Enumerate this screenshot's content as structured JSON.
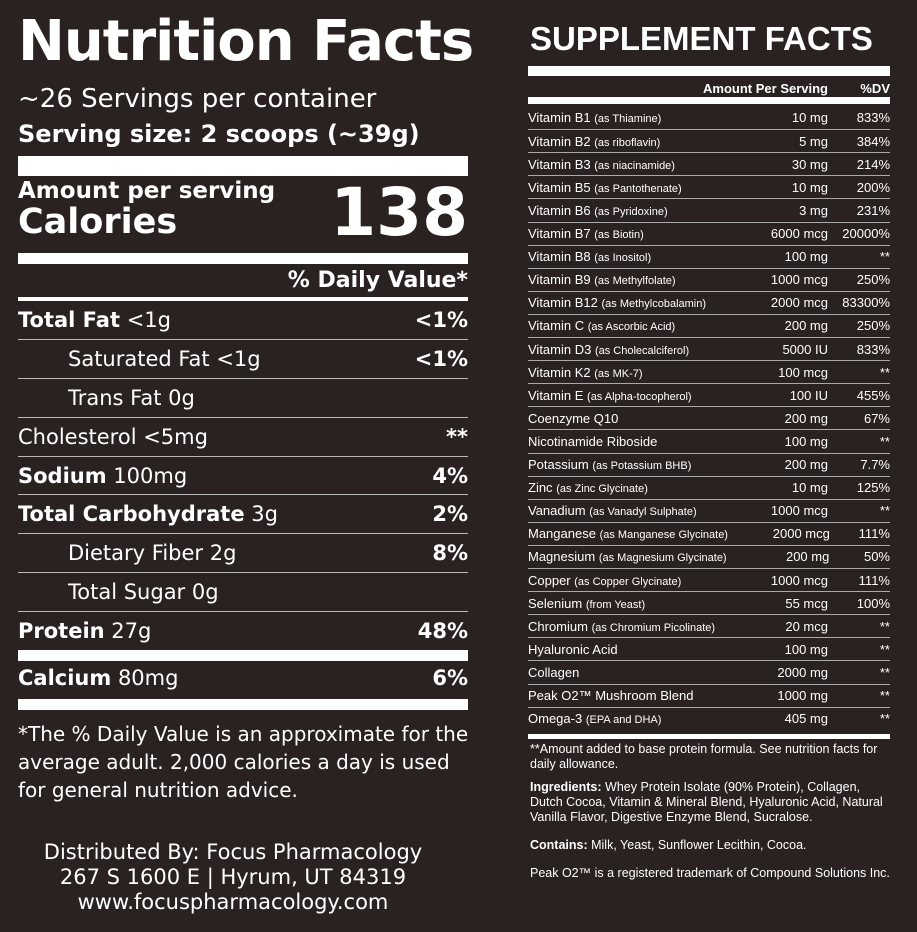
{
  "nutrition": {
    "title": "Nutrition Facts",
    "servings": "~26 Servings per container",
    "serving_size": "Serving size: 2 scoops (~39g)",
    "amount_per_serving": "Amount per serving",
    "calories_label": "Calories",
    "calories_value": "138",
    "dv_header": "% Daily Value*",
    "rows": [
      {
        "label": "Total Fat",
        "amount": " <1g",
        "dv": "<1%",
        "bold": true,
        "indent": false
      },
      {
        "label": "Saturated Fat <1g",
        "amount": "",
        "dv": "<1%",
        "bold": false,
        "indent": true
      },
      {
        "label": "Trans Fat 0g",
        "amount": "",
        "dv": "",
        "bold": false,
        "indent": true
      },
      {
        "label": "Cholesterol <5mg",
        "amount": "",
        "dv": "**",
        "bold": false,
        "indent": false
      },
      {
        "label": "Sodium",
        "amount": " 100mg",
        "dv": "4%",
        "bold": true,
        "indent": false
      },
      {
        "label": "Total Carbohydrate",
        "amount": " 3g",
        "dv": "2%",
        "bold": true,
        "indent": false
      },
      {
        "label": "Dietary Fiber 2g",
        "amount": "",
        "dv": "8%",
        "bold": false,
        "indent": true
      },
      {
        "label": "Total Sugar 0g",
        "amount": "",
        "dv": "",
        "bold": false,
        "indent": true
      },
      {
        "label": "Protein",
        "amount": " 27g",
        "dv": "48%",
        "bold": true,
        "indent": false
      },
      {
        "label": "Calcium",
        "amount": " 80mg",
        "dv": "6%",
        "bold": true,
        "indent": false
      }
    ],
    "footnote": "*The % Daily Value is an approximate for the average adult. 2,000 calories a day is used for general nutrition advice.",
    "distributor": [
      "Distributed By: Focus Pharmacology",
      "267 S 1600 E | Hyrum, UT 84319",
      "www.focuspharmacology.com"
    ]
  },
  "supplement": {
    "title": "SUPPLEMENT FACTS",
    "amount_header": "Amount Per Serving",
    "dv_header": "%DV",
    "rows": [
      {
        "name": "Vitamin B1",
        "note": "(as Thiamine)",
        "amount": "10 mg",
        "dv": "833%"
      },
      {
        "name": "Vitamin B2",
        "note": "(as riboflavin)",
        "amount": "5 mg",
        "dv": "384%"
      },
      {
        "name": "Vitamin B3",
        "note": "(as niacinamide)",
        "amount": "30 mg",
        "dv": "214%"
      },
      {
        "name": "Vitamin B5",
        "note": "(as Pantothenate)",
        "amount": "10 mg",
        "dv": "200%"
      },
      {
        "name": "Vitamin B6",
        "note": "(as Pyridoxine)",
        "amount": "3 mg",
        "dv": "231%"
      },
      {
        "name": "Vitamin B7",
        "note": "(as Biotin)",
        "amount": "6000 mcg",
        "dv": "20000%"
      },
      {
        "name": "Vitamin B8",
        "note": "(as Inositol)",
        "amount": "100 mg",
        "dv": "**"
      },
      {
        "name": "Vitamin B9",
        "note": "(as Methylfolate)",
        "amount": "1000 mcg",
        "dv": "250%"
      },
      {
        "name": "Vitamin B12",
        "note": "(as Methylcobalamin)",
        "amount": "2000 mcg",
        "dv": "83300%"
      },
      {
        "name": "Vitamin C",
        "note": "(as Ascorbic Acid)",
        "amount": "200 mg",
        "dv": "250%"
      },
      {
        "name": "Vitamin D3",
        "note": "(as Cholecalciferol)",
        "amount": "5000 IU",
        "dv": "833%"
      },
      {
        "name": "Vitamin K2",
        "note": "(as MK-7)",
        "amount": "100 mcg",
        "dv": "**"
      },
      {
        "name": "Vitamin E",
        "note": "(as Alpha-tocopherol)",
        "amount": "100 IU",
        "dv": "455%"
      },
      {
        "name": "Coenzyme Q10",
        "note": "",
        "amount": "200 mg",
        "dv": "67%"
      },
      {
        "name": "Nicotinamide Riboside",
        "note": "",
        "amount": "100 mg",
        "dv": "**"
      },
      {
        "name": "Potassium",
        "note": "(as Potassium BHB)",
        "amount": "200 mg",
        "dv": "7.7%"
      },
      {
        "name": "Zinc",
        "note": "(as Zinc Glycinate)",
        "amount": "10 mg",
        "dv": "125%"
      },
      {
        "name": "Vanadium",
        "note": "(as Vanadyl Sulphate)",
        "amount": "1000 mcg",
        "dv": "**"
      },
      {
        "name": "Manganese",
        "note": "(as Manganese Glycinate)",
        "amount": "2000 mcg",
        "dv": "111%"
      },
      {
        "name": "Magnesium",
        "note": "(as Magnesium Glycinate)",
        "amount": "200 mg",
        "dv": "50%"
      },
      {
        "name": "Copper",
        "note": "(as Copper Glycinate)",
        "amount": "1000 mcg",
        "dv": "111%"
      },
      {
        "name": "Selenium",
        "note": "(from Yeast)",
        "amount": "55 mcg",
        "dv": "100%"
      },
      {
        "name": "Chromium",
        "note": "(as Chromium Picolinate)",
        "amount": "20 mcg",
        "dv": "**"
      },
      {
        "name": "Hyaluronic Acid",
        "note": "",
        "amount": "100 mg",
        "dv": "**"
      },
      {
        "name": "Collagen",
        "note": "",
        "amount": "2000 mg",
        "dv": "**"
      },
      {
        "name": "Peak O2™ Mushroom Blend",
        "note": "",
        "amount": "1000 mg",
        "dv": "**"
      },
      {
        "name": "Omega-3",
        "note": "(EPA and DHA)",
        "amount": "405 mg",
        "dv": "**"
      }
    ],
    "amount_note": "**Amount added to base protein formula.  See nutrition facts for daily allowance.",
    "ingredients_label": "Ingredients:",
    "ingredients": " Whey Protein Isolate (90% Protein), Collagen, Dutch Cocoa, Vitamin & Mineral Blend, Hyaluronic Acid, Natural Vanilla Flavor, Digestive Enzyme Blend, Sucralose.",
    "contains_label": "Contains:",
    "contains": " Milk, Yeast, Sunflower Lecithin, Cocoa.",
    "trademark": "Peak O2™ is a registered trademark of Compound Solutions Inc."
  }
}
